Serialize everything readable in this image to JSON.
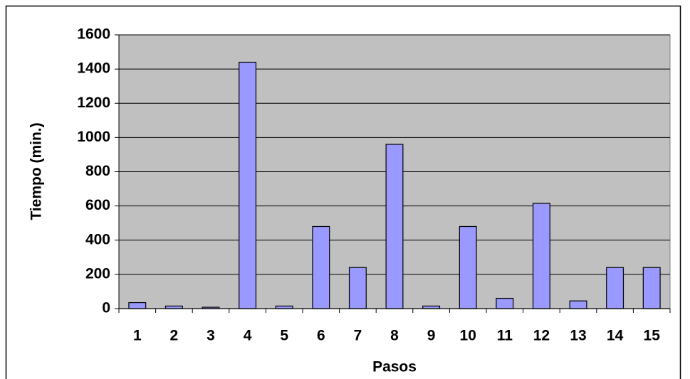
{
  "chart_data": {
    "type": "bar",
    "categories": [
      "1",
      "2",
      "3",
      "4",
      "5",
      "6",
      "7",
      "8",
      "9",
      "10",
      "11",
      "12",
      "13",
      "14",
      "15"
    ],
    "values": [
      35,
      15,
      8,
      1440,
      15,
      480,
      240,
      960,
      15,
      480,
      60,
      615,
      45,
      240,
      240
    ],
    "color": "#9999ff",
    "x_label": "Pasos",
    "y_label": "Tiempo (min.)",
    "ylim": [
      0,
      1600
    ],
    "yticks": [
      0,
      200,
      400,
      600,
      800,
      1000,
      1200,
      1400,
      1600
    ],
    "grid": true
  }
}
